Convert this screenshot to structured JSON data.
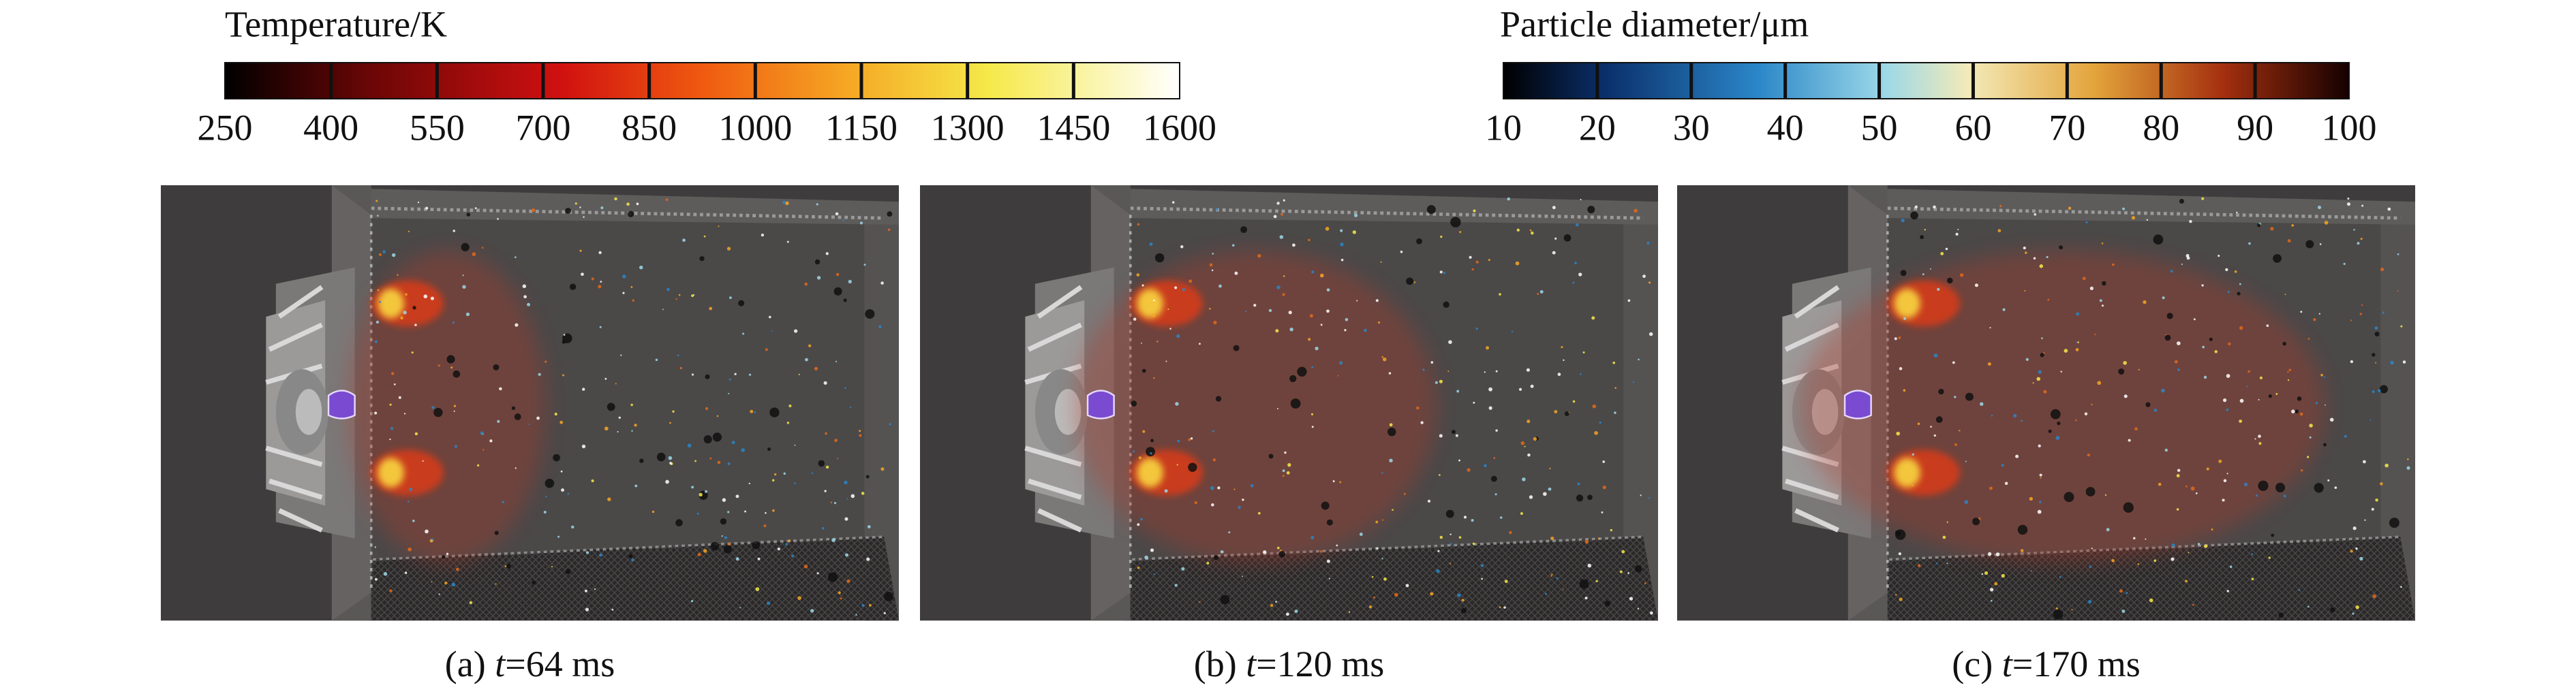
{
  "temperature_colorbar": {
    "title": "Temperature/K",
    "ticks": [
      250,
      400,
      550,
      700,
      850,
      1000,
      1150,
      1300,
      1450,
      1600
    ]
  },
  "diameter_colorbar": {
    "title": "Particle diameter/μm",
    "ticks": [
      10,
      20,
      30,
      40,
      50,
      60,
      70,
      80,
      90,
      100
    ]
  },
  "panels": [
    {
      "label": "(a)",
      "variable": "t",
      "value": "=64 ms"
    },
    {
      "label": "(b)",
      "variable": "t",
      "value": "=120 ms"
    },
    {
      "label": "(c)",
      "variable": "t",
      "value": "=170 ms"
    }
  ]
}
